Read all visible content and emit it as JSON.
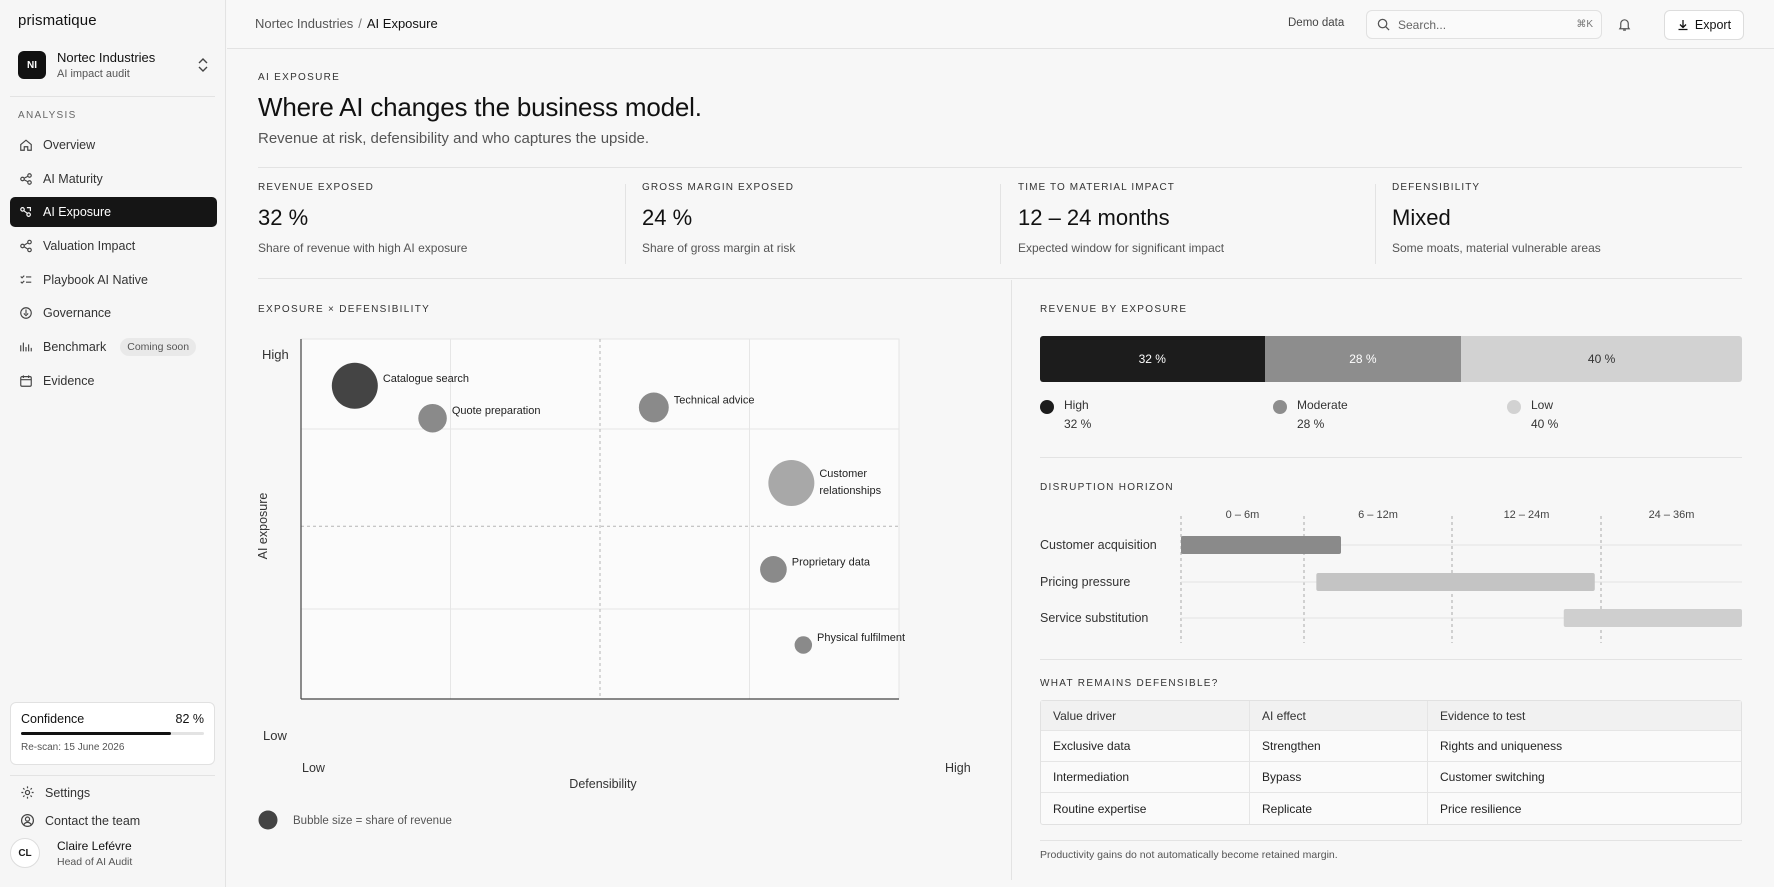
{
  "app": {
    "name": "prismatique"
  },
  "org": {
    "initials": "NI",
    "name": "Nortec Industries",
    "subtitle": "AI impact audit"
  },
  "nav": {
    "heading": "ANALYSIS",
    "items": [
      {
        "label": "Overview",
        "icon": "home-icon"
      },
      {
        "label": "AI Maturity",
        "icon": "nodes-icon"
      },
      {
        "label": "AI Exposure",
        "icon": "exposure-icon",
        "active": true
      },
      {
        "label": "Valuation Impact",
        "icon": "share-icon"
      },
      {
        "label": "Playbook AI Native",
        "icon": "checklist-icon"
      },
      {
        "label": "Governance",
        "icon": "shield-icon"
      },
      {
        "label": "Benchmark",
        "icon": "bars-icon",
        "badge": "Coming soon"
      },
      {
        "label": "Evidence",
        "icon": "calendar-icon"
      }
    ]
  },
  "confidence": {
    "label": "Confidence",
    "value": "82 %",
    "fraction": 0.82,
    "rescan": "Re-scan: 15 June 2026"
  },
  "footer_links": {
    "settings": "Settings",
    "contact": "Contact the team"
  },
  "user": {
    "initials": "CL",
    "name": "Claire Lefévre",
    "role": "Head of AI Audit"
  },
  "topbar": {
    "breadcrumb_parent": "Nortec Industries",
    "breadcrumb_sep": "/",
    "breadcrumb_current": "AI Exposure",
    "demo_label": "Demo data",
    "search_placeholder": "Search...",
    "search_shortcut": "⌘K",
    "export_label": "Export"
  },
  "page": {
    "eyebrow": "AI EXPOSURE",
    "title": "Where AI changes the business model.",
    "subtitle": "Revenue at risk, defensibility and who captures the upside."
  },
  "kpis": [
    {
      "label": "REVENUE EXPOSED",
      "value": "32 %",
      "desc": "Share of revenue with high AI exposure"
    },
    {
      "label": "GROSS MARGIN EXPOSED",
      "value": "24 %",
      "desc": "Share of gross margin at risk"
    },
    {
      "label": "TIME TO MATERIAL IMPACT",
      "value": "12 – 24 months",
      "desc": "Expected window for significant impact"
    },
    {
      "label": "DEFENSIBILITY",
      "value": "Mixed",
      "desc": "Some moats, material vulnerable areas"
    }
  ],
  "exposure_chart": {
    "section_label": "EXPOSURE × DEFENSIBILITY",
    "x_label": "Defensibility",
    "y_label": "AI exposure",
    "x_low": "Low",
    "x_high": "High",
    "y_low": "Low",
    "y_high": "High",
    "legend_note": "Bubble size = share of revenue",
    "colors": {
      "dark": "#444444",
      "mid": "#8a8a8a",
      "light": "#a8a8a8"
    }
  },
  "chart_data": {
    "type": "scatter",
    "x_range": [
      0,
      1
    ],
    "y_range": [
      0,
      1
    ],
    "size_meaning": "share of revenue",
    "points": [
      {
        "label": "Catalogue search",
        "x": 0.09,
        "y": 0.87,
        "size": 1.0,
        "shade": "dark"
      },
      {
        "label": "Quote preparation",
        "x": 0.22,
        "y": 0.78,
        "size": 0.62,
        "shade": "mid"
      },
      {
        "label": "Technical advice",
        "x": 0.59,
        "y": 0.81,
        "size": 0.65,
        "shade": "mid"
      },
      {
        "label": "Customer",
        "label2": "relationships",
        "x": 0.82,
        "y": 0.6,
        "size": 1.0,
        "shade": "light"
      },
      {
        "label": "Proprietary data",
        "x": 0.79,
        "y": 0.36,
        "size": 0.58,
        "shade": "mid"
      },
      {
        "label": "Physical fulfilment",
        "x": 0.84,
        "y": 0.15,
        "size": 0.38,
        "shade": "mid"
      }
    ]
  },
  "revenue_by_exposure": {
    "section_label": "REVENUE BY EXPOSURE",
    "segments": [
      {
        "name": "High",
        "value": 32,
        "label": "32 %",
        "color": "#1c1c1c",
        "text_color": "#ffffff"
      },
      {
        "name": "Moderate",
        "value": 28,
        "label": "28 %",
        "color": "#8d8d8d",
        "text_color": "#ffffff"
      },
      {
        "name": "Low",
        "value": 40,
        "label": "40 %",
        "color": "#d2d2d2",
        "text_color": "#333333"
      }
    ]
  },
  "horizon": {
    "section_label": "DISRUPTION HORIZON",
    "periods": [
      "0 – 6m",
      "6 – 12m",
      "12 – 24m",
      "24 – 36m"
    ],
    "rows": [
      {
        "label": "Customer acquisition",
        "start_month": 0,
        "end_month": 7.5,
        "color": "#8a8a8a"
      },
      {
        "label": "Pricing pressure",
        "start_month": 6.5,
        "end_month": 23.5,
        "color": "#c4c4c4"
      },
      {
        "label": "Service substitution",
        "start_month": 21,
        "end_month": 36,
        "color": "#cfcfcf"
      }
    ]
  },
  "defensible": {
    "section_label": "WHAT REMAINS DEFENSIBLE?",
    "headers": [
      "Value driver",
      "AI effect",
      "Evidence to test"
    ],
    "rows": [
      [
        "Exclusive data",
        "Strengthen",
        "Rights and uniqueness"
      ],
      [
        "Intermediation",
        "Bypass",
        "Customer switching"
      ],
      [
        "Routine expertise",
        "Replicate",
        "Price resilience"
      ]
    ],
    "footnote": "Productivity gains do not automatically become retained margin."
  }
}
